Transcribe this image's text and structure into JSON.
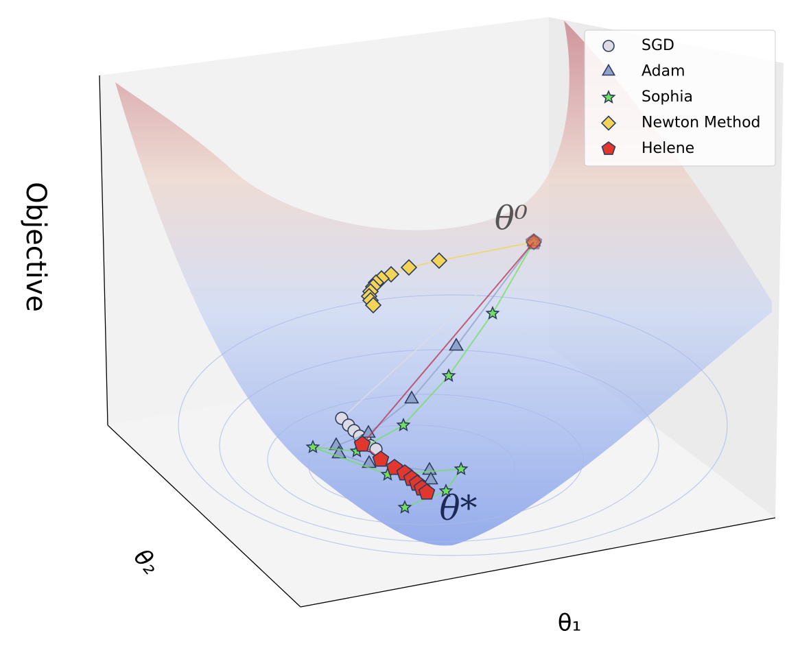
{
  "chart_data": {
    "type": "surface3d",
    "xlabel": "θ₁",
    "ylabel": "θ₂",
    "zlabel": "Objective",
    "annotations": [
      "θ⁰",
      "θ*"
    ],
    "legend": "upper right",
    "series": [
      {
        "name": "SGD",
        "color": "#dcdce4",
        "marker": "circle"
      },
      {
        "name": "Adam",
        "color": "#8da3c9",
        "marker": "triangle"
      },
      {
        "name": "Sophia",
        "color": "#6fe060",
        "marker": "star"
      },
      {
        "name": "Newton Method",
        "color": "#f2d558",
        "marker": "diamond"
      },
      {
        "name": "Helene",
        "color": "#e2372c",
        "marker": "pentagon"
      }
    ]
  }
}
